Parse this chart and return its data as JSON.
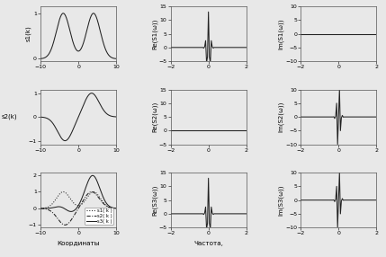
{
  "figsize": [
    4.29,
    2.86
  ],
  "dpi": 100,
  "bg_color": "#e8e8e8",
  "left_xlim": [
    -10,
    10
  ],
  "freq_xlim": [
    -2,
    2
  ],
  "s1_ylim": [
    -0.05,
    1.15
  ],
  "s2_ylim": [
    -1.15,
    1.15
  ],
  "s3_ylim": [
    -1.15,
    2.15
  ],
  "re_ylim": [
    -5,
    15
  ],
  "im_ylim": [
    -10,
    10
  ],
  "xlabel_left": "Координаты",
  "xlabel_mid": "Частота,",
  "ylabel_s1": "s1(k)",
  "ylabel_s2": "s2(k)",
  "ylabel_re1": "Re(S1(ω))",
  "ylabel_re2": "Re(S2(ω))",
  "ylabel_re3": "Re(S3(ω))",
  "ylabel_im1": "Im(S1(ω))",
  "ylabel_im2": "Im(S2(ω))",
  "ylabel_im3": "Im(S3(ω))",
  "legend_s1": "s1( k )",
  "legend_s2": "s2( k )",
  "legend_s3": "s3( k )",
  "line_color": "#222222",
  "re1_peak": 13.0,
  "im2_peak": 10.0
}
